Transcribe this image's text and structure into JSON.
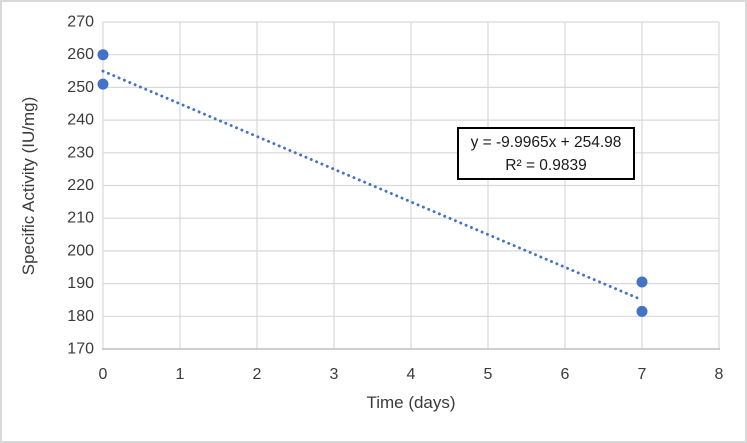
{
  "chart_data": {
    "type": "scatter",
    "title": "",
    "xlabel": "Time (days)",
    "ylabel": "Specific Activity (IU/mg)",
    "xlim": [
      0,
      8
    ],
    "ylim": [
      170,
      270
    ],
    "x_ticks": [
      0,
      1,
      2,
      3,
      4,
      5,
      6,
      7,
      8
    ],
    "y_ticks": [
      170,
      180,
      190,
      200,
      210,
      220,
      230,
      240,
      250,
      260,
      270
    ],
    "grid": true,
    "legend": "none",
    "series": [
      {
        "name": "Specific Activity",
        "marker": "circle",
        "points": [
          {
            "x": 0,
            "y": 260
          },
          {
            "x": 0,
            "y": 251
          },
          {
            "x": 7,
            "y": 190.5
          },
          {
            "x": 7,
            "y": 181.5
          }
        ]
      }
    ],
    "trendline": {
      "type": "linear",
      "style": "dotted",
      "slope": -9.9965,
      "intercept": 254.98,
      "x_start": 0,
      "x_end": 7,
      "equation": "y = -9.9965x + 254.98",
      "r_squared": "R² = 0.9839"
    },
    "annotation": {
      "line1": "y = -9.9965x + 254.98",
      "line2": "R² = 0.9839"
    }
  },
  "colors": {
    "marker": "#4472C4",
    "trendline": "#4472C4",
    "grid": "#D9D9D9",
    "axis_line": "#BFBFBF",
    "text": "#3b3b3b",
    "chart_border": "#D9D9D9",
    "annotation_border": "#000000",
    "background": "#FFFFFF"
  }
}
